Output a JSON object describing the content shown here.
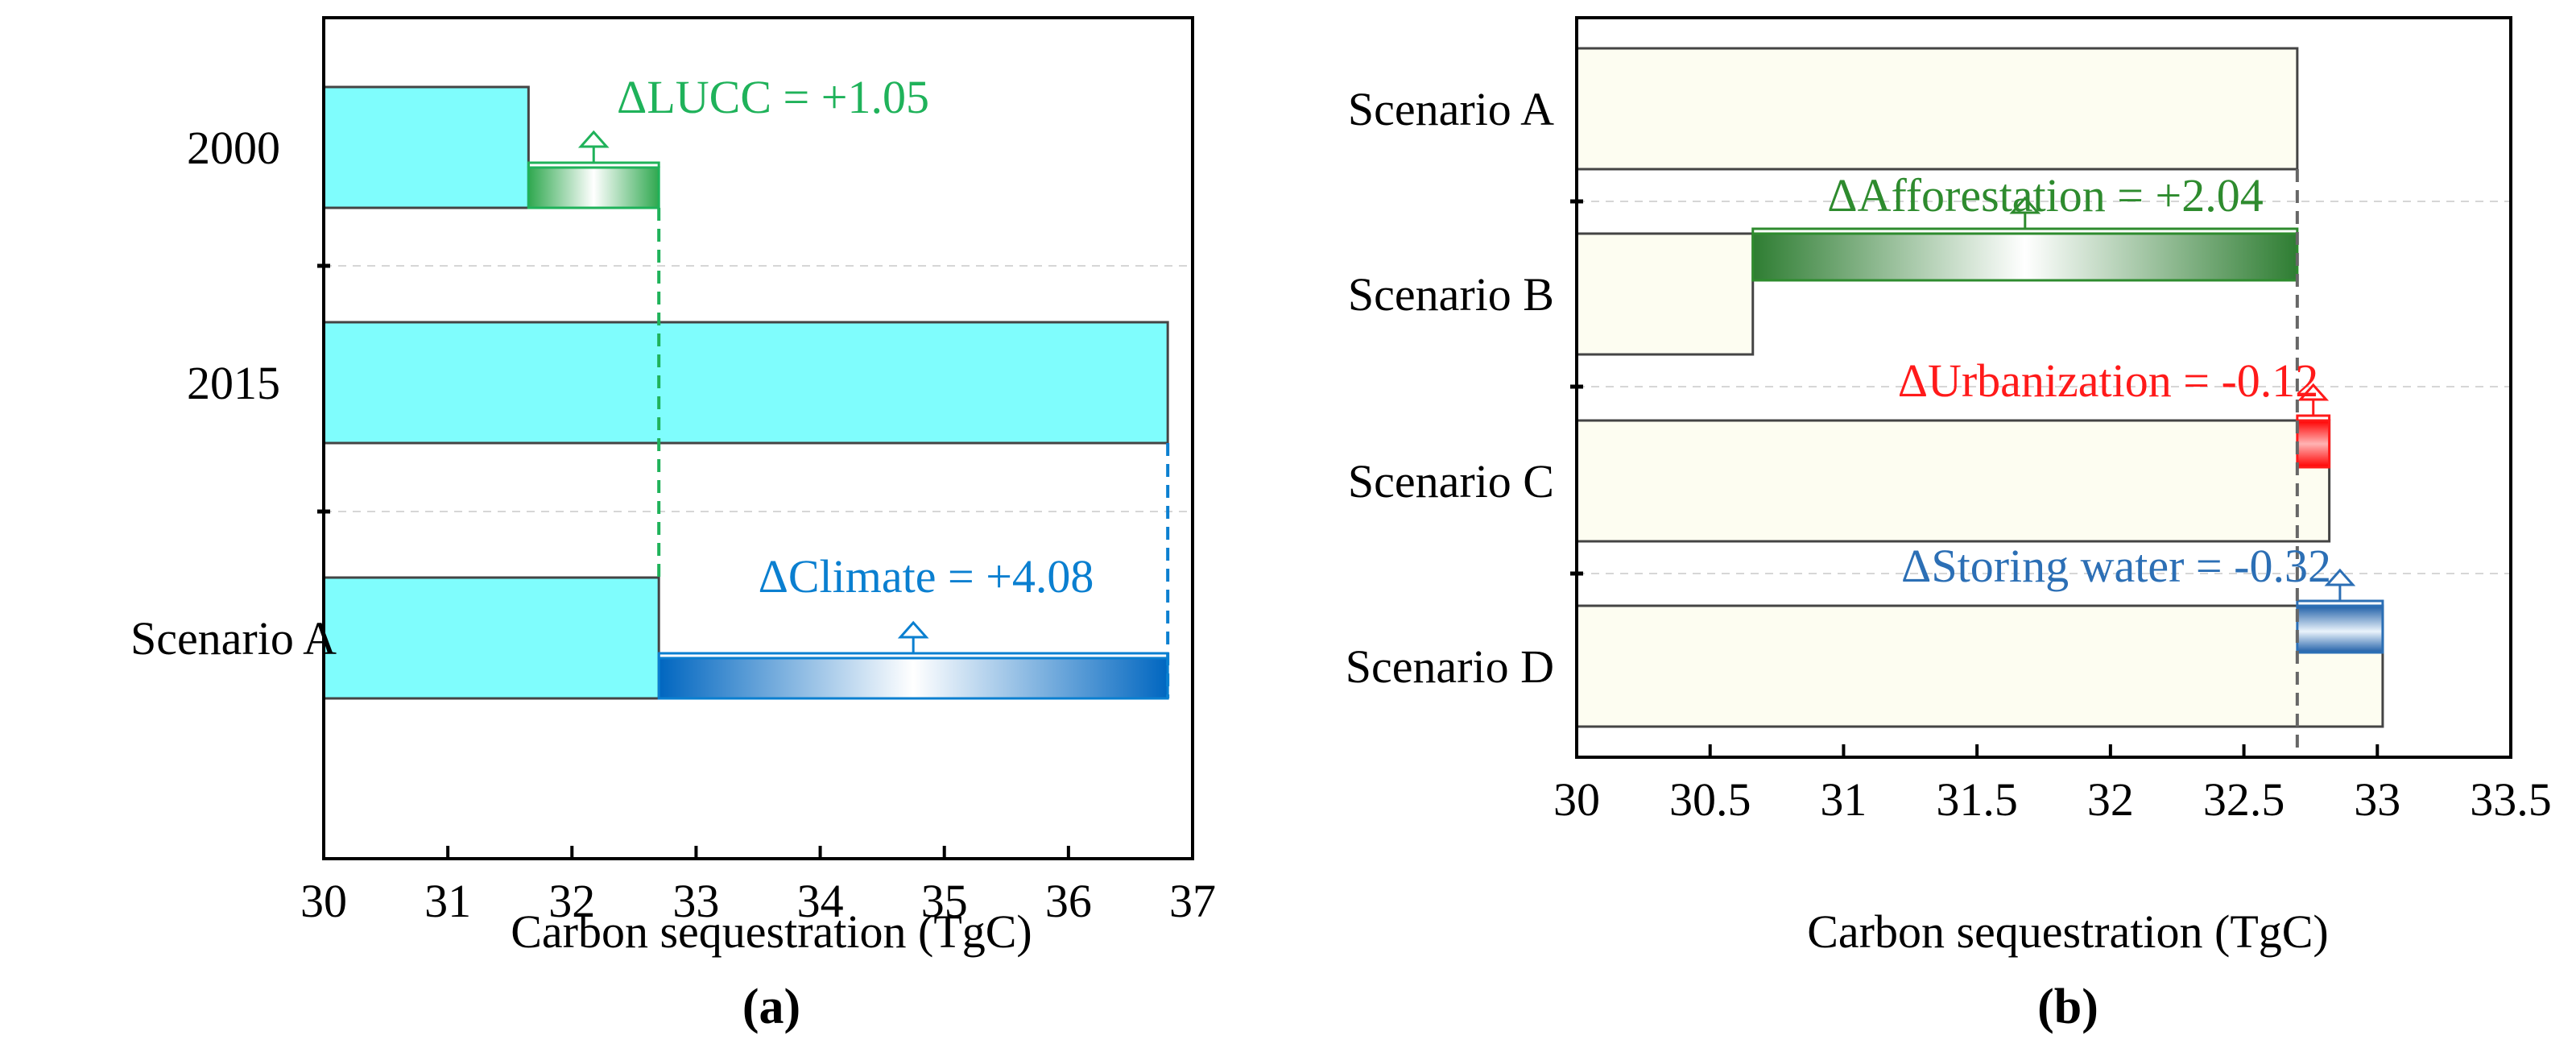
{
  "chart_data": [
    {
      "panel": "(a)",
      "type": "bar",
      "orientation": "horizontal",
      "categories": [
        "2000",
        "2015",
        "Scenario A"
      ],
      "values": [
        31.65,
        36.8,
        32.7
      ],
      "xlabel": "Carbon sequestration (TgC)",
      "xlim": [
        30,
        37
      ],
      "xticks": [
        "30",
        "31",
        "32",
        "33",
        "34",
        "35",
        "36",
        "37"
      ],
      "bar_color": "#7ffdfd",
      "grid": "horizontal dashed",
      "deltas": [
        {
          "label": "ΔLUCC = +1.05",
          "category": "2000",
          "from": 31.65,
          "to": 32.7,
          "color": "#1fb25a"
        },
        {
          "label": "ΔClimate = +4.08",
          "category": "Scenario A",
          "from": 32.7,
          "to": 36.8,
          "color": "#0a7fd0"
        }
      ]
    },
    {
      "panel": "(b)",
      "type": "bar",
      "orientation": "horizontal",
      "categories": [
        "Scenario A",
        "Scenario B",
        "Scenario C",
        "Scenario D"
      ],
      "values": [
        32.7,
        30.66,
        32.82,
        33.02
      ],
      "xlabel": "Carbon sequestration (TgC)",
      "xlim": [
        30,
        33.5
      ],
      "xticks": [
        "30",
        "30.5",
        "31",
        "31.5",
        "32",
        "32.5",
        "33",
        "33.5"
      ],
      "bar_color": "#fdfdf1",
      "grid": "horizontal dashed",
      "reference_value": 32.7,
      "deltas": [
        {
          "label": "ΔAfforestation = +2.04",
          "category": "Scenario B",
          "from": 30.66,
          "to": 32.7,
          "color": "#2e8b2e"
        },
        {
          "label": "ΔUrbanization = -0.12",
          "category": "Scenario C",
          "from": 32.7,
          "to": 32.82,
          "color": "#ff1a1a"
        },
        {
          "label": "ΔStoring water = -0.32",
          "category": "Scenario D",
          "from": 32.7,
          "to": 33.02,
          "color": "#2c6fb5"
        }
      ]
    }
  ]
}
